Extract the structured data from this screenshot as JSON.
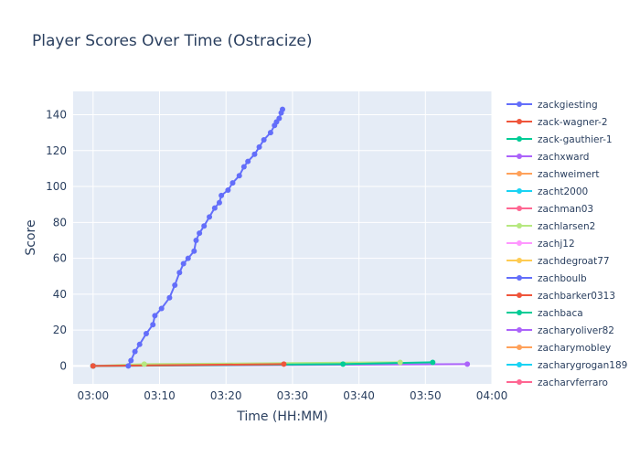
{
  "chart_data": {
    "type": "scatter",
    "title": "Player Scores Over Time (Ostracize)",
    "xlabel": "Time (HH:MM)",
    "ylabel": "Score",
    "x_unit": "minutes after 03:00",
    "xlim": [
      -3,
      60
    ],
    "ylim": [
      -10,
      153
    ],
    "x_ticks": [
      {
        "value": 0,
        "label": "03:00"
      },
      {
        "value": 10,
        "label": "03:10"
      },
      {
        "value": 20,
        "label": "03:20"
      },
      {
        "value": 30,
        "label": "03:30"
      },
      {
        "value": 40,
        "label": "03:40"
      },
      {
        "value": 50,
        "label": "03:50"
      },
      {
        "value": 60,
        "label": "04:00"
      }
    ],
    "y_ticks": [
      0,
      20,
      40,
      60,
      80,
      100,
      120,
      140
    ],
    "grid": true,
    "legend_position": "right",
    "series": [
      {
        "name": "zackgiesting",
        "color": "#636efa",
        "mode": "lines+markers",
        "x": [
          5.3,
          5.7,
          6.3,
          7.0,
          8.0,
          9.0,
          9.3,
          10.3,
          11.5,
          12.3,
          13.0,
          13.6,
          14.3,
          15.2,
          15.5,
          16.0,
          16.7,
          17.5,
          18.3,
          19.0,
          19.3,
          20.3,
          21.0,
          22.0,
          22.7,
          23.3,
          24.3,
          25.0,
          25.7,
          26.7,
          27.3,
          27.6,
          28.0,
          28.3,
          28.5
        ],
        "y": [
          0,
          3,
          8,
          12,
          18,
          23,
          28,
          32,
          38,
          45,
          52,
          57,
          60,
          64,
          70,
          74,
          78,
          83,
          88,
          91,
          95,
          98,
          102,
          106,
          111,
          114,
          118,
          122,
          126,
          130,
          134,
          136,
          138,
          141,
          143
        ]
      },
      {
        "name": "zack-wagner-2",
        "color": "#ef553b",
        "mode": "lines+markers",
        "x": [
          0,
          28.7
        ],
        "y": [
          0,
          1
        ]
      },
      {
        "name": "zack-gauthier-1",
        "color": "#00cc96",
        "mode": "lines+markers",
        "x": [
          0,
          37.6,
          51.1
        ],
        "y": [
          0,
          1,
          2
        ]
      },
      {
        "name": "zachxward",
        "color": "#ab63fa",
        "mode": "lines+markers",
        "x": [
          0,
          56.3
        ],
        "y": [
          0,
          1
        ]
      },
      {
        "name": "zachweimert",
        "color": "#ffa15a",
        "mode": "lines+markers",
        "x": [
          0
        ],
        "y": [
          0
        ]
      },
      {
        "name": "zacht2000",
        "color": "#19d3f3",
        "mode": "lines+markers",
        "x": [
          0
        ],
        "y": [
          0
        ]
      },
      {
        "name": "zachman03",
        "color": "#ff6692",
        "mode": "lines+markers",
        "x": [
          0
        ],
        "y": [
          0
        ]
      },
      {
        "name": "zachlarsen2",
        "color": "#b6e880",
        "mode": "lines+markers",
        "x": [
          0,
          7.7,
          46.2
        ],
        "y": [
          0,
          1,
          2
        ]
      },
      {
        "name": "zachj12",
        "color": "#ff97ff",
        "mode": "lines+markers",
        "x": [
          0
        ],
        "y": [
          0
        ]
      },
      {
        "name": "zachdegroat77",
        "color": "#fecb52",
        "mode": "lines+markers",
        "x": [
          0
        ],
        "y": [
          0
        ]
      },
      {
        "name": "zachboulb",
        "color": "#636efa",
        "mode": "lines+markers",
        "x": [
          0
        ],
        "y": [
          0
        ]
      },
      {
        "name": "zachbarker0313",
        "color": "#ef553b",
        "mode": "lines+markers",
        "x": [
          0
        ],
        "y": [
          0
        ]
      },
      {
        "name": "zachbaca",
        "color": "#00cc96",
        "mode": "lines+markers",
        "x": [
          0
        ],
        "y": [
          0
        ]
      },
      {
        "name": "zacharyoliver82",
        "color": "#ab63fa",
        "mode": "lines+markers",
        "x": [
          0
        ],
        "y": [
          0
        ]
      },
      {
        "name": "zacharymobley",
        "color": "#ffa15a",
        "mode": "lines+markers",
        "x": [
          0
        ],
        "y": [
          0
        ]
      },
      {
        "name": "zacharygrogan189",
        "color": "#19d3f3",
        "mode": "lines+markers",
        "x": [
          0
        ],
        "y": [
          0
        ]
      },
      {
        "name": "zacharyferraro",
        "color": "#ff6692",
        "mode": "lines+markers",
        "x": [
          0
        ],
        "y": [
          0
        ]
      }
    ]
  }
}
